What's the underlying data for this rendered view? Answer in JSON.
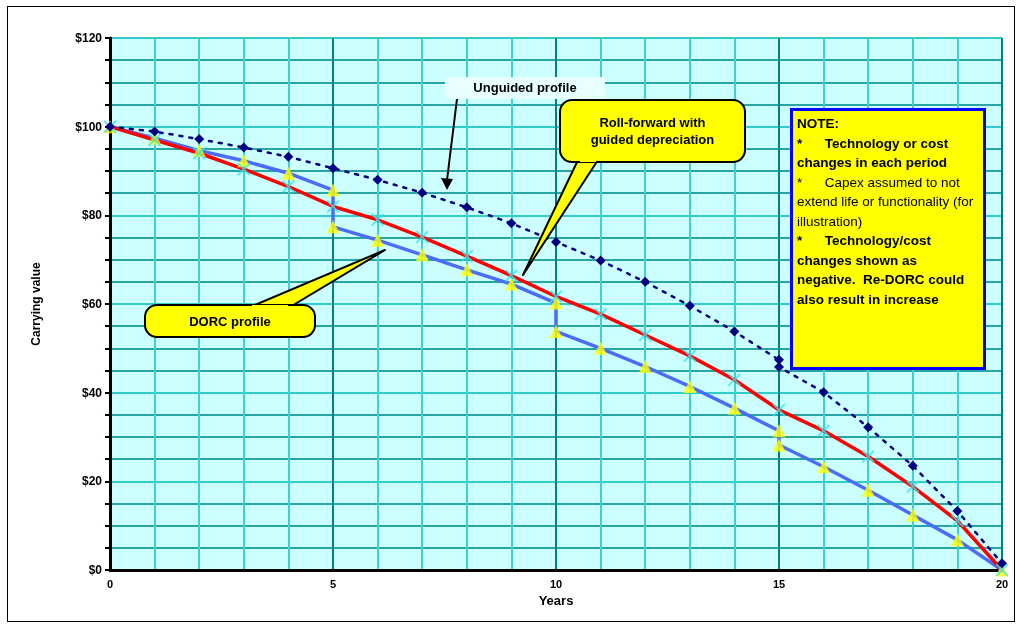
{
  "chart_data": {
    "type": "line",
    "xlabel": "Years",
    "ylabel": "Carrying value",
    "xlim": [
      0,
      20
    ],
    "xticks": [
      0,
      {
        "value": 1,
        "label": null
      },
      {
        "value": 2,
        "label": null
      },
      {
        "value": 3,
        "label": null
      },
      {
        "value": 4,
        "label": null
      },
      5,
      {
        "value": 6,
        "label": null
      },
      {
        "value": 7,
        "label": null
      },
      {
        "value": 8,
        "label": null
      },
      {
        "value": 9,
        "label": null
      },
      10,
      {
        "value": 11,
        "label": null
      },
      {
        "value": 12,
        "label": null
      },
      {
        "value": 13,
        "label": null
      },
      {
        "value": 14,
        "label": null
      },
      15,
      {
        "value": 16,
        "label": null
      },
      {
        "value": 17,
        "label": null
      },
      {
        "value": 18,
        "label": null
      },
      {
        "value": 19,
        "label": null
      },
      20
    ],
    "ylim": [
      0,
      120
    ],
    "yticks": [
      {
        "value": 0,
        "label": "$0"
      },
      {
        "value": 5,
        "label": null
      },
      {
        "value": 10,
        "label": null
      },
      {
        "value": 15,
        "label": null
      },
      {
        "value": 20,
        "label": "$20"
      },
      {
        "value": 25,
        "label": null
      },
      {
        "value": 30,
        "label": null
      },
      {
        "value": 35,
        "label": null
      },
      {
        "value": 40,
        "label": "$40"
      },
      {
        "value": 45,
        "label": null
      },
      {
        "value": 50,
        "label": null
      },
      {
        "value": 55,
        "label": null
      },
      {
        "value": 60,
        "label": "$60"
      },
      {
        "value": 65,
        "label": null
      },
      {
        "value": 70,
        "label": null
      },
      {
        "value": 75,
        "label": null
      },
      {
        "value": 80,
        "label": "$80"
      },
      {
        "value": 85,
        "label": null
      },
      {
        "value": 90,
        "label": null
      },
      {
        "value": 95,
        "label": null
      },
      {
        "value": 100,
        "label": "$100"
      },
      {
        "value": 105,
        "label": null
      },
      {
        "value": 110,
        "label": null
      },
      {
        "value": 115,
        "label": null
      },
      {
        "value": 120,
        "label": "$120"
      }
    ],
    "grid": true,
    "series": [
      {
        "color": "#000080",
        "marker": "diamond",
        "line_style": "dotted",
        "x": [
          0,
          1,
          2,
          3,
          4,
          5,
          6,
          7,
          8,
          9,
          10,
          11,
          12,
          13,
          14,
          15,
          15,
          16,
          17,
          18,
          19,
          20
        ],
        "values": [
          100,
          98.9,
          97.2,
          95.3,
          93.2,
          90.6,
          88.0,
          85.1,
          81.8,
          78.2,
          74,
          69.8,
          65.0,
          59.6,
          53.8,
          47.4,
          45.8,
          40.1,
          32.2,
          23.5,
          13.3,
          1.5
        ]
      },
      {
        "color": "#4a6cf7",
        "marker": "none",
        "line_style": "solid",
        "x": [
          0,
          1,
          2,
          3,
          4,
          5,
          5,
          6,
          7,
          8,
          9,
          10,
          10,
          11,
          12,
          13,
          14,
          15,
          15,
          16,
          17,
          18,
          19,
          20
        ],
        "values": [
          100,
          97.4,
          94.6,
          92.3,
          89.5,
          85.7,
          77.4,
          74.4,
          71.1,
          67.7,
          64.5,
          60.2,
          53.8,
          50.0,
          45.9,
          41.4,
          36.5,
          31.4,
          28.2,
          23.3,
          18.0,
          12.4,
          6.8,
          0
        ]
      },
      {
        "type": "scatter",
        "color": "#ffff00",
        "marker": "triangle",
        "x": [
          0,
          1,
          2,
          3,
          4,
          5,
          5,
          6,
          7,
          8,
          9,
          10,
          10,
          11,
          12,
          13,
          14,
          15,
          15,
          16,
          17,
          18,
          19,
          20
        ],
        "values": [
          100,
          97.4,
          94.6,
          92.3,
          89.5,
          85.7,
          77.4,
          74.4,
          71.1,
          67.7,
          64.5,
          60.2,
          53.8,
          50.0,
          45.9,
          41.4,
          36.5,
          31.4,
          28.2,
          23.3,
          18.0,
          12.4,
          6.8,
          0
        ]
      },
      {
        "color": "#ff0000",
        "marker": "none",
        "line_style": "solid",
        "x": [
          0,
          1,
          2,
          3,
          4,
          5,
          6,
          7,
          8,
          9,
          10,
          11,
          12,
          13,
          14,
          15,
          16,
          17,
          18,
          19,
          20
        ],
        "values": [
          100,
          97.0,
          94.0,
          90.4,
          86.5,
          82.0,
          79.0,
          75.1,
          70.8,
          66.4,
          61.7,
          57.7,
          53.0,
          48.3,
          42.9,
          36.1,
          31.4,
          25.6,
          18.8,
          11.1,
          0
        ]
      },
      {
        "type": "scatter",
        "color": "#33e6f0",
        "marker": "cross",
        "x": [
          0,
          1,
          2,
          3,
          4,
          5,
          6,
          7,
          8,
          9,
          10,
          11,
          12,
          13,
          14,
          15,
          16,
          17,
          18,
          19,
          20
        ],
        "values": [
          100,
          97.0,
          94.0,
          90.4,
          86.5,
          82.0,
          79.0,
          75.1,
          70.8,
          66.4,
          61.7,
          57.7,
          53.0,
          48.3,
          42.9,
          36.1,
          31.4,
          25.6,
          18.8,
          11.1,
          0
        ]
      }
    ],
    "annotations": [
      "Unguided profile",
      "Roll-forward with guided depreciation",
      "DORC profile",
      "NOTE:",
      "*      Technology or cost changes in each period",
      "*      Capex assumed to not extend life or functionality (for illustration)",
      "*      Technology/cost changes shown as negative.  Re-DORC could also result in increase"
    ]
  }
}
